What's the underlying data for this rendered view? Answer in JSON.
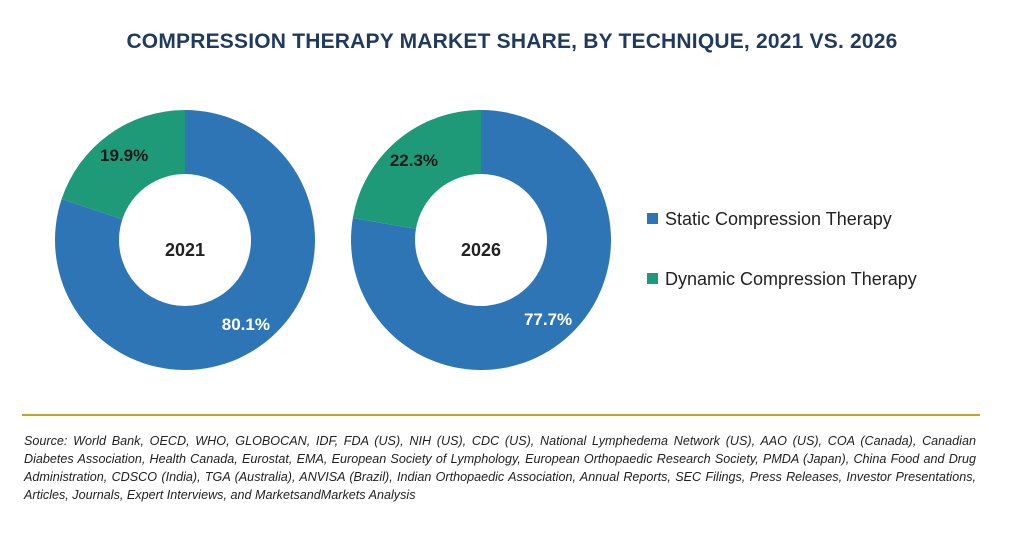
{
  "chart_data": {
    "type": "pie",
    "title": "COMPRESSION THERAPY MARKET SHARE, BY TECHNIQUE, 2021 VS. 2026",
    "categories": [
      "Static Compression Therapy",
      "Dynamic Compression Therapy"
    ],
    "colors": {
      "Static Compression Therapy": "#2e75b6",
      "Dynamic Compression Therapy": "#1e9a78"
    },
    "charts": [
      {
        "year": "2021",
        "slices": [
          {
            "name": "Static Compression Therapy",
            "value": 80.1,
            "label": "80.1%"
          },
          {
            "name": "Dynamic Compression Therapy",
            "value": 19.9,
            "label": "19.9%"
          }
        ]
      },
      {
        "year": "2026",
        "slices": [
          {
            "name": "Static Compression Therapy",
            "value": 77.7,
            "label": "77.7%"
          },
          {
            "name": "Dynamic Compression Therapy",
            "value": 22.3,
            "label": "22.3%"
          }
        ]
      }
    ],
    "legend": {
      "position": "right",
      "entries": [
        "Static Compression Therapy",
        "Dynamic Compression Therapy"
      ]
    }
  },
  "source": "Source: World Bank, OECD, WHO, GLOBOCAN, IDF, FDA (US), NIH (US), CDC (US), National Lymphedema Network (US), AAO (US), COA (Canada), Canadian Diabetes Association, Health Canada, Eurostat, EMA, European Society of Lymphology, European Orthopaedic Research Society, PMDA (Japan), China Food and Drug Administration, CDSCO (India), TGA (Australia), ANVISA (Brazil), Indian Orthopaedic Association, Annual Reports, SEC Filings, Press Releases, Investor Presentations, Articles, Journals, Expert Interviews, and MarketsandMarkets Analysis"
}
